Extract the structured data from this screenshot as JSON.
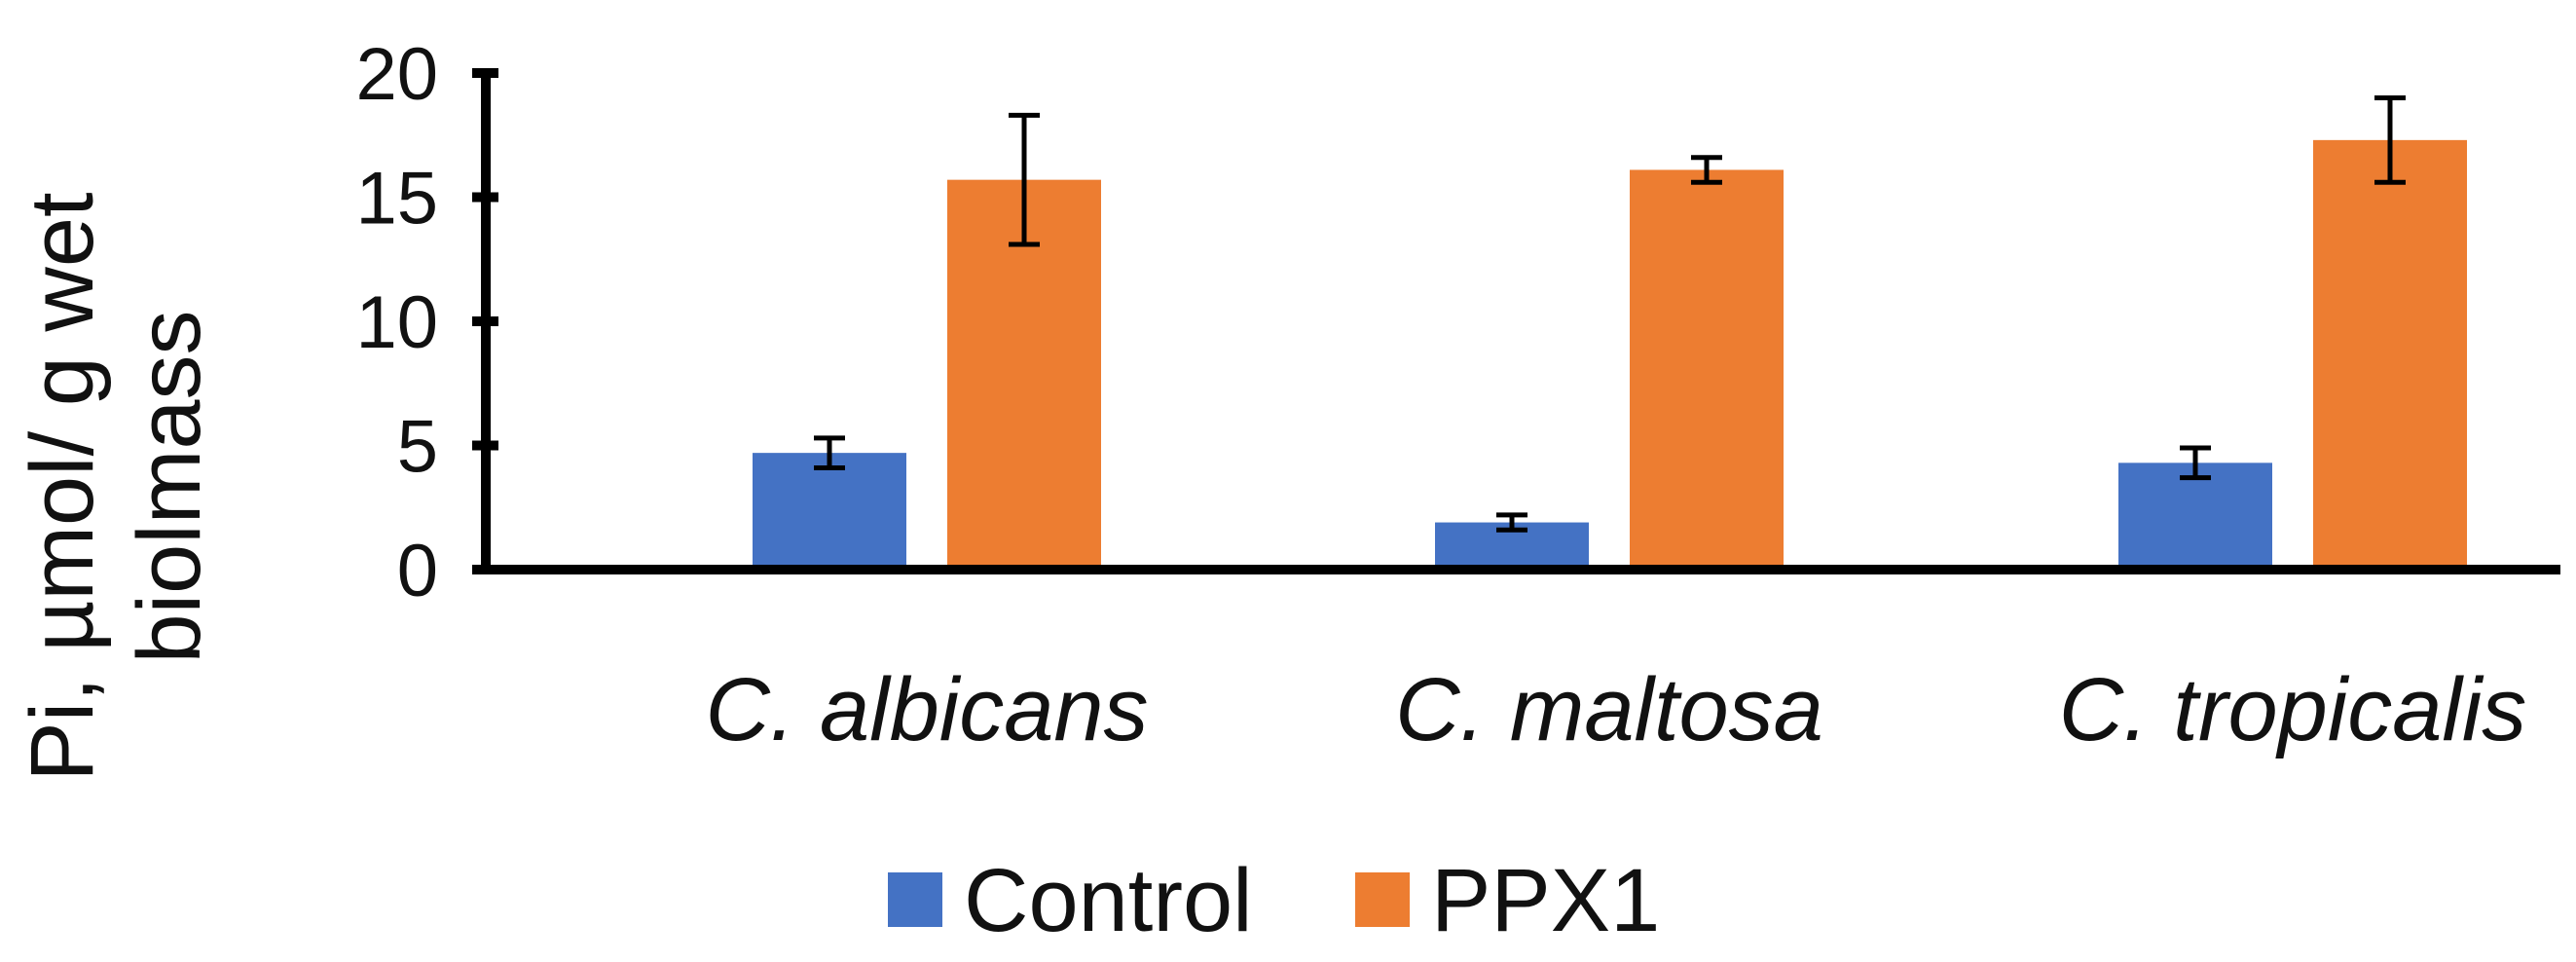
{
  "chart_data": {
    "type": "bar",
    "title": "",
    "xlabel": "",
    "ylabel_lines": [
      "Pi, µmol/ g wet",
      "biolmass"
    ],
    "ylim": [
      0,
      20
    ],
    "yticks": [
      "0",
      "5",
      "10",
      "15",
      "20"
    ],
    "ytick_values": [
      0,
      5,
      10,
      15,
      20
    ],
    "categories": [
      "C. albicans",
      "C. maltosa",
      "C. tropicalis"
    ],
    "series": [
      {
        "name": "Control",
        "color": "#4472C4",
        "values": [
          4.7,
          1.9,
          4.3
        ],
        "errors": [
          0.6,
          0.3,
          0.6
        ]
      },
      {
        "name": "PPX1",
        "color": "#ED7D31",
        "values": [
          15.7,
          16.1,
          17.3
        ],
        "errors": [
          2.6,
          0.5,
          1.7
        ]
      }
    ],
    "legend_position": "bottom",
    "grid": false
  }
}
